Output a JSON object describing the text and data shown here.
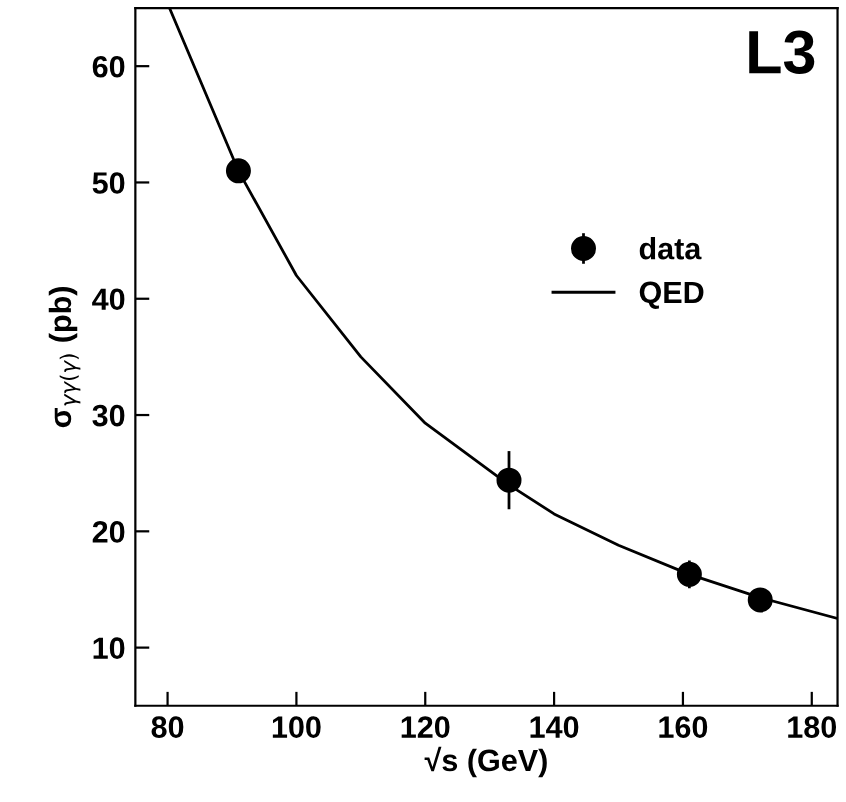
{
  "chart_data": {
    "type": "scatter",
    "xlabel": "√s (GeV)",
    "ylabel": "σ$_{γγ(γ)}$ (pb)",
    "annotations": [
      "L3"
    ],
    "xlim": [
      75,
      184
    ],
    "ylim": [
      5,
      65
    ],
    "xticks": [
      80,
      100,
      120,
      140,
      160,
      180
    ],
    "yticks": [
      10,
      20,
      30,
      40,
      50,
      60
    ],
    "grid": false,
    "legend": "right",
    "series": [
      {
        "name": "data",
        "marker": "circle",
        "color": "#000000",
        "x": [
          91,
          133,
          161,
          172
        ],
        "values": [
          51,
          24.4,
          16.3,
          14.1
        ],
        "errors": [
          1,
          2.5,
          1.2,
          1
        ]
      },
      {
        "name": "QED",
        "type": "line",
        "color": "#000000",
        "line_style": "solid",
        "x": [
          80.3,
          91,
          100,
          110,
          120,
          133,
          140,
          150,
          161,
          172,
          184
        ],
        "values": [
          65,
          51,
          42,
          35,
          29.3,
          24,
          21.5,
          18.8,
          16.3,
          14.3,
          12.5
        ]
      }
    ]
  }
}
